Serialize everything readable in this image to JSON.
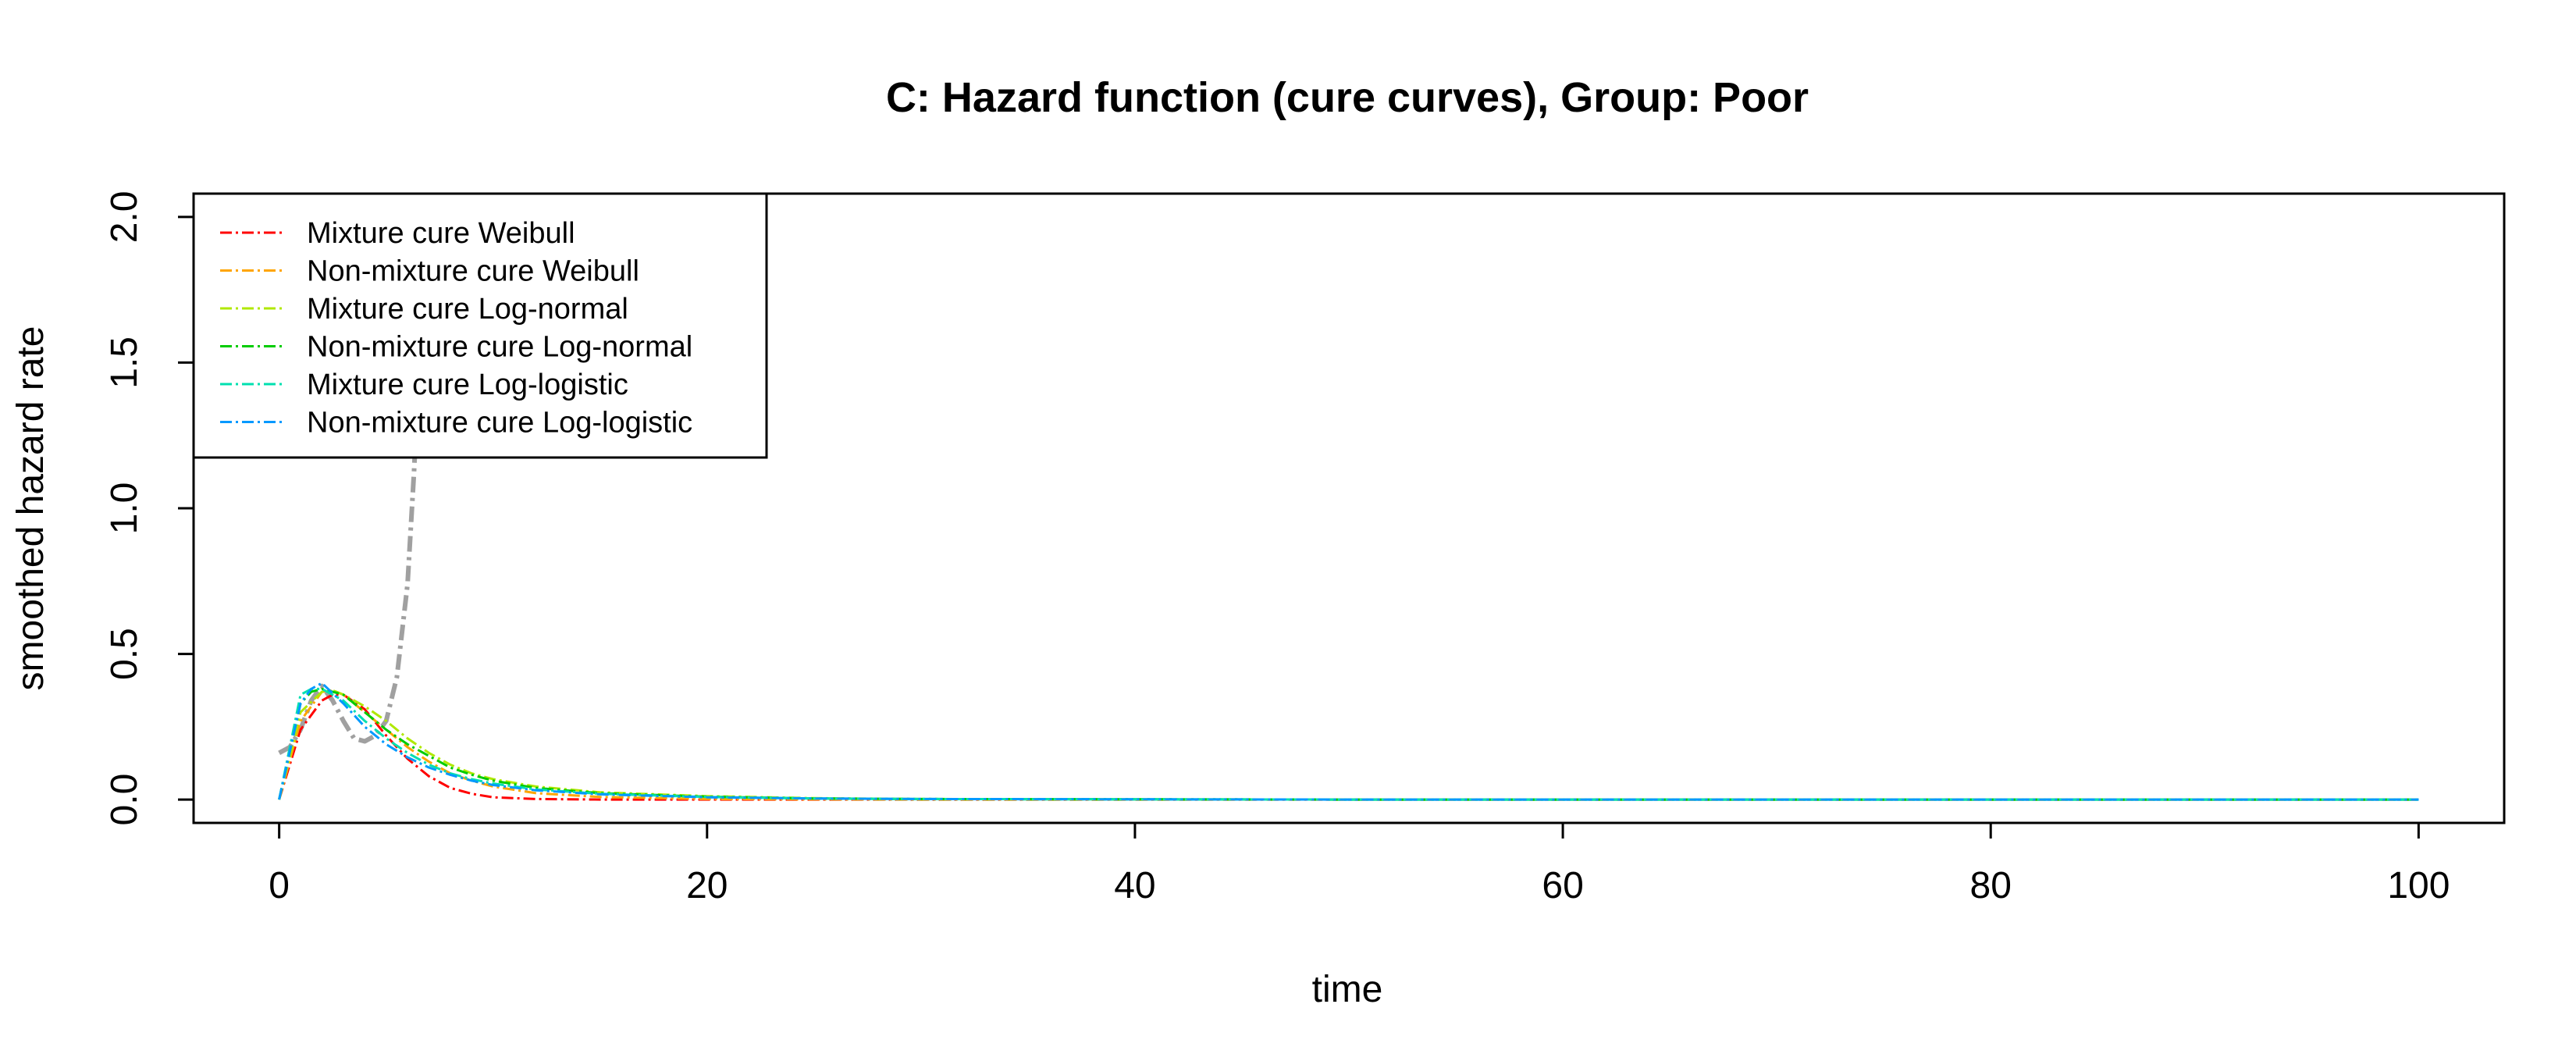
{
  "chart_data": {
    "type": "line",
    "title": "C: Hazard function (cure curves), Group: Poor",
    "xlabel": "time",
    "ylabel": "smoothed hazard rate",
    "xlim": [
      -4,
      104
    ],
    "ylim": [
      -0.08,
      2.08
    ],
    "xticks": [
      0,
      20,
      40,
      60,
      80,
      100
    ],
    "xtick_labels": [
      "0",
      "20",
      "40",
      "60",
      "80",
      "100"
    ],
    "yticks": [
      0,
      0.5,
      1,
      1.5,
      2
    ],
    "ytick_labels": [
      "0.0",
      "0.5",
      "1.0",
      "1.5",
      "2.0"
    ],
    "grid": false,
    "legend_position": "top-left",
    "observed": {
      "color": "#A0A0A0",
      "points": [
        [
          0,
          0.16
        ],
        [
          0.5,
          0.18
        ],
        [
          1,
          0.24
        ],
        [
          1.5,
          0.34
        ],
        [
          2,
          0.39
        ],
        [
          2.5,
          0.34
        ],
        [
          3,
          0.27
        ],
        [
          3.5,
          0.21
        ],
        [
          4,
          0.2
        ],
        [
          4.5,
          0.22
        ],
        [
          5,
          0.27
        ],
        [
          5.5,
          0.42
        ],
        [
          6,
          0.74
        ],
        [
          6.3,
          1.12
        ],
        [
          6.6,
          1.6
        ],
        [
          6.8,
          1.95
        ],
        [
          7.0,
          2.3
        ]
      ]
    },
    "series": [
      {
        "name": "Mixture cure Weibull",
        "color": "#FF0000",
        "points": [
          [
            0,
            0.0
          ],
          [
            1,
            0.24
          ],
          [
            2,
            0.34
          ],
          [
            2.5,
            0.36
          ],
          [
            3,
            0.36
          ],
          [
            4,
            0.31
          ],
          [
            5,
            0.22
          ],
          [
            6,
            0.14
          ],
          [
            7,
            0.08
          ],
          [
            8,
            0.04
          ],
          [
            9,
            0.02
          ],
          [
            10,
            0.008
          ],
          [
            12,
            0.002
          ],
          [
            15,
            0.0
          ],
          [
            20,
            0.0
          ],
          [
            30,
            0.0
          ],
          [
            50,
            0.0
          ],
          [
            75,
            0.0
          ],
          [
            100,
            0.0
          ]
        ]
      },
      {
        "name": "Non-mixture cure Weibull",
        "color": "#FFA500",
        "points": [
          [
            0,
            0.0
          ],
          [
            1,
            0.27
          ],
          [
            2,
            0.37
          ],
          [
            2.5,
            0.375
          ],
          [
            3,
            0.36
          ],
          [
            4,
            0.3
          ],
          [
            5,
            0.24
          ],
          [
            6,
            0.18
          ],
          [
            7,
            0.13
          ],
          [
            8,
            0.09
          ],
          [
            9,
            0.065
          ],
          [
            10,
            0.045
          ],
          [
            12,
            0.022
          ],
          [
            15,
            0.009
          ],
          [
            20,
            0.002
          ],
          [
            30,
            0.0
          ],
          [
            50,
            0.0
          ],
          [
            75,
            0.0
          ],
          [
            100,
            0.0
          ]
        ]
      },
      {
        "name": "Mixture cure Log-normal",
        "color": "#B0E800",
        "points": [
          [
            0,
            0.0
          ],
          [
            1,
            0.3
          ],
          [
            2,
            0.37
          ],
          [
            2.5,
            0.375
          ],
          [
            3,
            0.36
          ],
          [
            4,
            0.32
          ],
          [
            5,
            0.27
          ],
          [
            6,
            0.21
          ],
          [
            7,
            0.16
          ],
          [
            8,
            0.12
          ],
          [
            9,
            0.09
          ],
          [
            10,
            0.07
          ],
          [
            12,
            0.045
          ],
          [
            15,
            0.025
          ],
          [
            20,
            0.012
          ],
          [
            25,
            0.005
          ],
          [
            30,
            0.002
          ],
          [
            50,
            0.0
          ],
          [
            75,
            0.0
          ],
          [
            100,
            0.0
          ]
        ]
      },
      {
        "name": "Non-mixture cure Log-normal",
        "color": "#00CC00",
        "points": [
          [
            0,
            0.0
          ],
          [
            1,
            0.33
          ],
          [
            1.5,
            0.37
          ],
          [
            2,
            0.38
          ],
          [
            3,
            0.36
          ],
          [
            4,
            0.3
          ],
          [
            5,
            0.24
          ],
          [
            6,
            0.19
          ],
          [
            7,
            0.15
          ],
          [
            8,
            0.11
          ],
          [
            9,
            0.085
          ],
          [
            10,
            0.065
          ],
          [
            12,
            0.04
          ],
          [
            15,
            0.022
          ],
          [
            20,
            0.01
          ],
          [
            25,
            0.004
          ],
          [
            30,
            0.002
          ],
          [
            50,
            0.0
          ],
          [
            75,
            0.0
          ],
          [
            100,
            0.0
          ]
        ]
      },
      {
        "name": "Mixture cure Log-logistic",
        "color": "#00E0B0",
        "points": [
          [
            0,
            0.0
          ],
          [
            1,
            0.36
          ],
          [
            1.5,
            0.38
          ],
          [
            2,
            0.38
          ],
          [
            3,
            0.34
          ],
          [
            4,
            0.27
          ],
          [
            5,
            0.21
          ],
          [
            6,
            0.16
          ],
          [
            7,
            0.12
          ],
          [
            8,
            0.09
          ],
          [
            9,
            0.07
          ],
          [
            10,
            0.055
          ],
          [
            12,
            0.035
          ],
          [
            15,
            0.02
          ],
          [
            20,
            0.009
          ],
          [
            25,
            0.004
          ],
          [
            30,
            0.002
          ],
          [
            50,
            0.0
          ],
          [
            75,
            0.0
          ],
          [
            100,
            0.0
          ]
        ]
      },
      {
        "name": "Non-mixture cure Log-logistic",
        "color": "#0099FF",
        "points": [
          [
            0,
            0.0
          ],
          [
            1,
            0.33
          ],
          [
            1.5,
            0.38
          ],
          [
            2,
            0.4
          ],
          [
            3,
            0.33
          ],
          [
            4,
            0.25
          ],
          [
            5,
            0.19
          ],
          [
            6,
            0.145
          ],
          [
            7,
            0.11
          ],
          [
            8,
            0.085
          ],
          [
            9,
            0.065
          ],
          [
            10,
            0.05
          ],
          [
            12,
            0.032
          ],
          [
            15,
            0.018
          ],
          [
            20,
            0.008
          ],
          [
            25,
            0.004
          ],
          [
            30,
            0.002
          ],
          [
            50,
            0.0
          ],
          [
            75,
            0.0
          ],
          [
            100,
            0.0
          ]
        ]
      }
    ]
  }
}
